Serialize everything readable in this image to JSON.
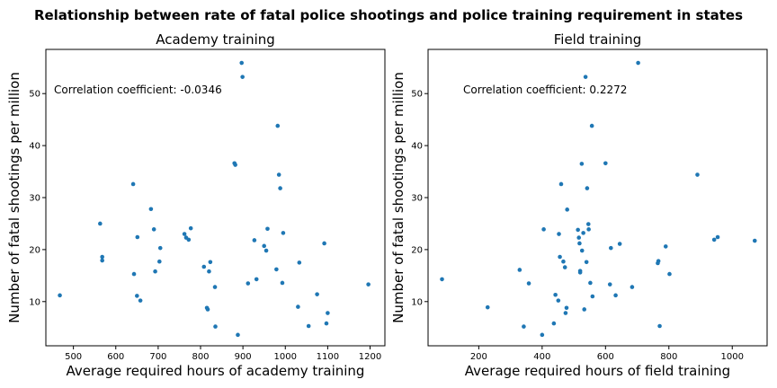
{
  "figure_title": "Relationship between rate of fatal police shootings and police training requirement in states",
  "chart_data": [
    {
      "type": "scatter",
      "title": "Academy training",
      "xlabel": "Average required hours of academy training",
      "ylabel": "Number of fatal shootings per million",
      "xlim": [
        435,
        1235
      ],
      "ylim": [
        1.5,
        58.5
      ],
      "xticks": [
        500,
        600,
        700,
        800,
        900,
        1000,
        1100,
        1200
      ],
      "yticks": [
        10,
        20,
        30,
        40,
        50
      ],
      "annotation": "Correlation coefficient: -0.0346",
      "color": "#1f77b4",
      "points": [
        [
          468,
          11.2
        ],
        [
          563,
          25.0
        ],
        [
          568,
          18.6
        ],
        [
          568,
          17.9
        ],
        [
          641,
          32.6
        ],
        [
          643,
          15.3
        ],
        [
          650,
          11.1
        ],
        [
          651,
          22.4
        ],
        [
          658,
          10.2
        ],
        [
          683,
          27.8
        ],
        [
          690,
          23.9
        ],
        [
          693,
          15.8
        ],
        [
          705,
          20.3
        ],
        [
          703,
          17.7
        ],
        [
          762,
          23.0
        ],
        [
          766,
          22.3
        ],
        [
          772,
          21.9
        ],
        [
          777,
          24.1
        ],
        [
          808,
          16.7
        ],
        [
          815,
          8.8
        ],
        [
          817,
          8.5
        ],
        [
          820,
          15.8
        ],
        [
          823,
          17.6
        ],
        [
          834,
          12.8
        ],
        [
          835,
          5.2
        ],
        [
          880,
          36.6
        ],
        [
          882,
          36.3
        ],
        [
          888,
          3.6
        ],
        [
          897,
          55.9
        ],
        [
          899,
          53.2
        ],
        [
          912,
          13.5
        ],
        [
          927,
          21.8
        ],
        [
          932,
          14.3
        ],
        [
          950,
          20.7
        ],
        [
          955,
          19.8
        ],
        [
          958,
          24.0
        ],
        [
          979,
          16.2
        ],
        [
          982,
          43.8
        ],
        [
          985,
          34.4
        ],
        [
          988,
          31.8
        ],
        [
          993,
          13.6
        ],
        [
          995,
          23.2
        ],
        [
          1030,
          9.0
        ],
        [
          1033,
          17.5
        ],
        [
          1055,
          5.3
        ],
        [
          1075,
          11.4
        ],
        [
          1092,
          21.2
        ],
        [
          1097,
          5.8
        ],
        [
          1100,
          7.8
        ],
        [
          1196,
          13.3
        ]
      ]
    },
    {
      "type": "scatter",
      "title": "Field training",
      "xlabel": "Average required hours of field training",
      "ylabel": "Number of fatal shootings per million",
      "xlim": [
        40,
        1110
      ],
      "ylim": [
        1.5,
        58.5
      ],
      "xticks": [
        200,
        400,
        600,
        800,
        1000
      ],
      "yticks": [
        10,
        20,
        30,
        40,
        50
      ],
      "annotation": "Correlation coefficient: 0.2272",
      "color": "#1f77b4",
      "points": [
        [
          84,
          14.3
        ],
        [
          228,
          8.9
        ],
        [
          329,
          16.1
        ],
        [
          342,
          5.2
        ],
        [
          358,
          13.5
        ],
        [
          400,
          3.6
        ],
        [
          405,
          23.9
        ],
        [
          437,
          5.8
        ],
        [
          442,
          11.3
        ],
        [
          451,
          10.2
        ],
        [
          453,
          23.0
        ],
        [
          456,
          18.6
        ],
        [
          460,
          32.6
        ],
        [
          467,
          17.7
        ],
        [
          472,
          16.6
        ],
        [
          474,
          7.8
        ],
        [
          477,
          8.8
        ],
        [
          479,
          27.7
        ],
        [
          513,
          23.8
        ],
        [
          516,
          22.3
        ],
        [
          518,
          21.2
        ],
        [
          520,
          15.9
        ],
        [
          520,
          15.6
        ],
        [
          525,
          36.5
        ],
        [
          526,
          19.8
        ],
        [
          530,
          23.2
        ],
        [
          533,
          8.5
        ],
        [
          537,
          53.2
        ],
        [
          540,
          17.6
        ],
        [
          542,
          31.8
        ],
        [
          546,
          24.9
        ],
        [
          547,
          23.9
        ],
        [
          552,
          13.6
        ],
        [
          557,
          43.8
        ],
        [
          559,
          11.0
        ],
        [
          600,
          36.6
        ],
        [
          614,
          13.3
        ],
        [
          617,
          20.3
        ],
        [
          632,
          11.2
        ],
        [
          645,
          21.1
        ],
        [
          684,
          12.8
        ],
        [
          703,
          55.9
        ],
        [
          765,
          17.4
        ],
        [
          767,
          17.8
        ],
        [
          771,
          5.3
        ],
        [
          790,
          20.6
        ],
        [
          802,
          15.3
        ],
        [
          890,
          34.4
        ],
        [
          943,
          21.9
        ],
        [
          954,
          22.4
        ],
        [
          1071,
          21.7
        ]
      ]
    }
  ]
}
